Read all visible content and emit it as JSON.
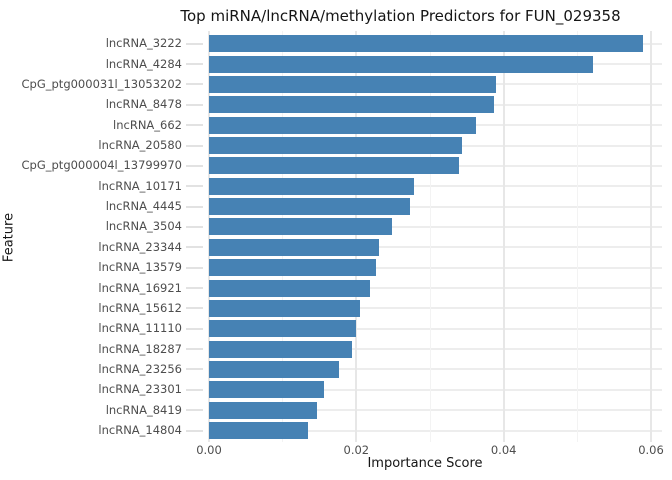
{
  "chart_data": {
    "type": "bar",
    "orientation": "horizontal",
    "title": "Top miRNA/lncRNA/methylation Predictors for FUN_029358",
    "xlabel": "Importance Score",
    "ylabel": "Feature",
    "legend": "none",
    "grid": "major and minor vertical gridlines, major horizontal gridlines at category rows",
    "xlim": [
      0,
      0.0615
    ],
    "x_major_ticks": [
      0,
      0.02,
      0.04,
      0.06
    ],
    "x_major_tick_labels": [
      "0.00",
      "0.02",
      "0.04",
      "0.06"
    ],
    "x_minor_gridlines": [
      0.01,
      0.03,
      0.05
    ],
    "categories": [
      "lncRNA_3222",
      "lncRNA_4284",
      "CpG_ptg000031l_13053202",
      "lncRNA_8478",
      "lncRNA_662",
      "lncRNA_20580",
      "CpG_ptg000004l_13799970",
      "lncRNA_10171",
      "lncRNA_4445",
      "lncRNA_3504",
      "lncRNA_23344",
      "lncRNA_13579",
      "lncRNA_16921",
      "lncRNA_15612",
      "lncRNA_11110",
      "lncRNA_18287",
      "lncRNA_23256",
      "lncRNA_23301",
      "lncRNA_8419",
      "lncRNA_14804"
    ],
    "values": [
      0.0589,
      0.0521,
      0.039,
      0.0387,
      0.0362,
      0.0343,
      0.0339,
      0.0278,
      0.0273,
      0.0248,
      0.0231,
      0.0227,
      0.0219,
      0.0205,
      0.02,
      0.0194,
      0.0176,
      0.0156,
      0.0147,
      0.0134
    ]
  },
  "colors": {
    "bar": "#4682B4",
    "background": "#ffffff",
    "grid_major_x": "#e7e7e7",
    "grid_minor_x": "#f3f3f3",
    "grid_major_y": "#ededed",
    "axis_tick": "#e2e2e2",
    "tick_label_text": "#4d4d4d",
    "title_text": "#151515"
  }
}
